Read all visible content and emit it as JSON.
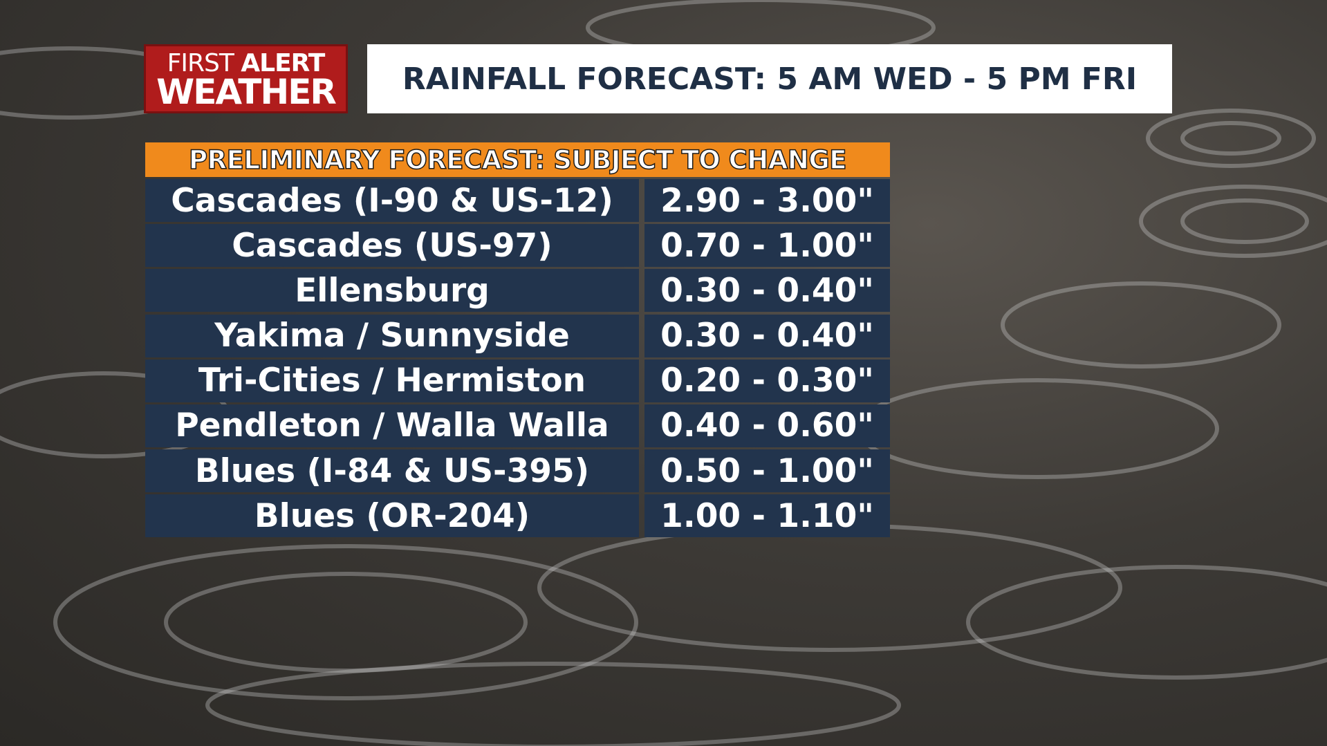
{
  "logo": {
    "first": "FIRST",
    "alert": "ALERT",
    "weather": "WEATHER"
  },
  "title": "RAINFALL FORECAST: 5 AM WED - 5 PM FRI",
  "banner": "PRELIMINARY FORECAST: SUBJECT TO CHANGE",
  "table": {
    "rows": [
      [
        "Cascades (I-90 & US-12)",
        "2.90 - 3.00\""
      ],
      [
        "Cascades (US-97)",
        "0.70 - 1.00\""
      ],
      [
        "Ellensburg",
        "0.30 - 0.40\""
      ],
      [
        "Yakima / Sunnyside",
        "0.30 - 0.40\""
      ],
      [
        "Tri-Cities / Hermiston",
        "0.20 - 0.30\""
      ],
      [
        "Pendleton / Walla Walla",
        "0.40 - 0.60\""
      ],
      [
        "Blues (I-84 & US-395)",
        "0.50 - 1.00\""
      ],
      [
        "Blues (OR-204)",
        "1.00 - 1.10\""
      ]
    ]
  }
}
